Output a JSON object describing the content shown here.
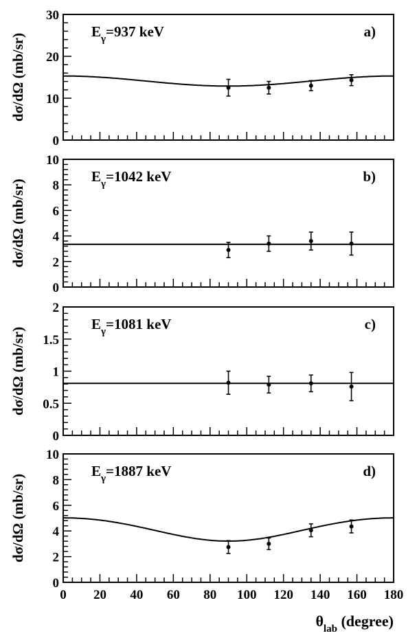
{
  "chart_data": [
    {
      "type": "scatter",
      "panel": "a)",
      "energy": "937 keV",
      "ylabel": "dσ/dΩ (mb/sr)",
      "ylim": [
        0,
        30
      ],
      "yticks": [
        0,
        10,
        20,
        30
      ],
      "xlim": [
        0,
        180
      ],
      "points": [
        {
          "x": 90,
          "y": 12.5,
          "err": 2.0
        },
        {
          "x": 112,
          "y": 12.5,
          "err": 1.5
        },
        {
          "x": 135,
          "y": 13.0,
          "err": 1.2
        },
        {
          "x": 157,
          "y": 14.3,
          "err": 1.3
        }
      ],
      "fit": {
        "a0": 13.7,
        "a2": 1.6,
        "a4": 0
      }
    },
    {
      "type": "scatter",
      "panel": "b)",
      "energy": "1042 keV",
      "ylabel": "dσ/dΩ (mb/sr)",
      "ylim": [
        0,
        10
      ],
      "yticks": [
        0,
        2,
        4,
        6,
        8,
        10
      ],
      "xlim": [
        0,
        180
      ],
      "points": [
        {
          "x": 90,
          "y": 2.9,
          "err": 0.6
        },
        {
          "x": 112,
          "y": 3.4,
          "err": 0.6
        },
        {
          "x": 135,
          "y": 3.6,
          "err": 0.7
        },
        {
          "x": 157,
          "y": 3.4,
          "err": 0.9
        }
      ],
      "fit": {
        "a0": 3.35,
        "a2": 0,
        "a4": 0
      }
    },
    {
      "type": "scatter",
      "panel": "c)",
      "energy": "1081 keV",
      "ylabel": "dσ/dΩ (mb/sr)",
      "ylim": [
        0,
        2
      ],
      "yticks": [
        0,
        0.5,
        1,
        1.5,
        2
      ],
      "yticklabels": [
        "0",
        "0.5",
        "1",
        "1.5",
        "2"
      ],
      "xlim": [
        0,
        180
      ],
      "points": [
        {
          "x": 90,
          "y": 0.82,
          "err": 0.18
        },
        {
          "x": 112,
          "y": 0.79,
          "err": 0.13
        },
        {
          "x": 135,
          "y": 0.81,
          "err": 0.13
        },
        {
          "x": 157,
          "y": 0.76,
          "err": 0.22
        }
      ],
      "fit": {
        "a0": 0.81,
        "a2": 0,
        "a4": 0
      }
    },
    {
      "type": "scatter",
      "panel": "d)",
      "energy": "1887 keV",
      "ylabel": "dσ/dΩ (mb/sr)",
      "ylim": [
        0,
        10
      ],
      "yticks": [
        0,
        2,
        4,
        6,
        8,
        10
      ],
      "xlim": [
        0,
        180
      ],
      "xticks": [
        0,
        20,
        40,
        60,
        80,
        100,
        120,
        140,
        160,
        180
      ],
      "xlabel_main": "θ",
      "xlabel_sub": "lab",
      "xlabel_rest": "(degree)",
      "points": [
        {
          "x": 90,
          "y": 2.75,
          "err": 0.5
        },
        {
          "x": 112,
          "y": 3.0,
          "err": 0.45
        },
        {
          "x": 135,
          "y": 4.05,
          "err": 0.5
        },
        {
          "x": 157,
          "y": 4.35,
          "err": 0.5
        }
      ],
      "fit": {
        "a0": 3.86,
        "a2": 1.24,
        "a4": -0.08
      }
    }
  ],
  "annotation_prefix": "E",
  "annotation_sub": "γ"
}
